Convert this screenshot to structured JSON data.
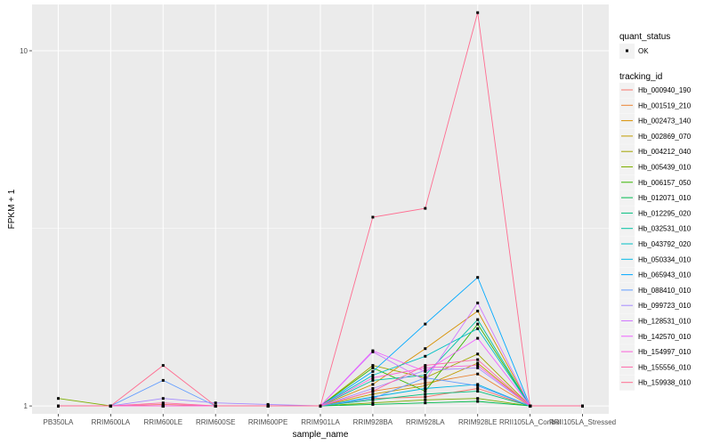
{
  "chart_data": {
    "type": "line",
    "xlabel": "sample_name",
    "ylabel": "FPKM + 1",
    "y_scale": "log10",
    "ylim": [
      0.95,
      13.5
    ],
    "y_ticks": [
      1,
      10
    ],
    "y_tick_labels": [
      "1",
      "10"
    ],
    "grid": true,
    "legend_position": "right",
    "categories": [
      "PB350LA",
      "RRIM600LA",
      "RRIM600LE",
      "RRIM600SE",
      "RRIM600PE",
      "RRIM901LA",
      "RRIM928BA",
      "RRIM928LA",
      "RRIM928LE",
      "RRII105LA_Control",
      "RRII105LA_Stressed"
    ],
    "point_legend": {
      "title": "quant_status",
      "entries": [
        "OK"
      ]
    },
    "color_legend_title": "tracking_id",
    "series": [
      {
        "name": "Hb_000940_190",
        "color": "#F8766D",
        "values": [
          1.0,
          1.0,
          1.01,
          1.0,
          1.0,
          1.0,
          1.05,
          1.06,
          1.12,
          1.0,
          1.0
        ]
      },
      {
        "name": "Hb_001519_210",
        "color": "#EA8331",
        "values": [
          1.0,
          1.0,
          1.0,
          1.0,
          1.0,
          1.0,
          1.1,
          1.16,
          1.23,
          1.0,
          1.0
        ]
      },
      {
        "name": "Hb_002473_140",
        "color": "#D89000",
        "values": [
          1.0,
          1.0,
          1.0,
          1.0,
          1.0,
          1.0,
          1.15,
          1.45,
          1.85,
          1.0,
          1.0
        ]
      },
      {
        "name": "Hb_002869_070",
        "color": "#C09B00",
        "values": [
          1.0,
          1.0,
          1.0,
          1.0,
          1.0,
          1.0,
          1.08,
          1.14,
          1.32,
          1.0,
          1.0
        ]
      },
      {
        "name": "Hb_004212_040",
        "color": "#A3A500",
        "values": [
          1.0,
          1.0,
          1.0,
          1.0,
          1.0,
          1.0,
          1.3,
          1.2,
          1.4,
          1.0,
          1.0
        ]
      },
      {
        "name": "Hb_005439_010",
        "color": "#7CAE00",
        "values": [
          1.05,
          1.0,
          1.0,
          1.0,
          1.0,
          1.0,
          1.02,
          1.04,
          1.05,
          1.0,
          1.0
        ]
      },
      {
        "name": "Hb_006157_050",
        "color": "#39B600",
        "values": [
          1.0,
          1.0,
          1.0,
          1.0,
          1.0,
          1.0,
          1.28,
          1.1,
          1.7,
          1.0,
          1.0
        ]
      },
      {
        "name": "Hb_012071_010",
        "color": "#00BB4E",
        "values": [
          1.0,
          1.0,
          1.0,
          1.0,
          1.0,
          1.0,
          1.01,
          1.02,
          1.03,
          1.0,
          1.0
        ]
      },
      {
        "name": "Hb_012295_020",
        "color": "#00BF7D",
        "values": [
          1.0,
          1.0,
          1.0,
          1.0,
          1.0,
          1.0,
          1.04,
          1.08,
          1.1,
          1.0,
          1.0
        ]
      },
      {
        "name": "Hb_032531_010",
        "color": "#00C1A3",
        "values": [
          1.0,
          1.0,
          1.0,
          1.0,
          1.0,
          1.0,
          1.18,
          1.22,
          1.75,
          1.0,
          1.0
        ]
      },
      {
        "name": "Hb_043792_020",
        "color": "#00BFC4",
        "values": [
          1.0,
          1.0,
          1.0,
          1.0,
          1.0,
          1.0,
          1.22,
          1.38,
          1.65,
          1.0,
          1.0
        ]
      },
      {
        "name": "Hb_050334_010",
        "color": "#00B8E5",
        "values": [
          1.0,
          1.0,
          1.0,
          1.0,
          1.0,
          1.0,
          1.06,
          1.12,
          1.15,
          1.0,
          1.0
        ]
      },
      {
        "name": "Hb_065943_010",
        "color": "#00A9FF",
        "values": [
          1.0,
          1.0,
          1.0,
          1.0,
          1.0,
          1.0,
          1.25,
          1.7,
          2.3,
          1.0,
          1.0
        ]
      },
      {
        "name": "Hb_088410_010",
        "color": "#619CFF",
        "values": [
          1.0,
          1.0,
          1.18,
          1.0,
          1.0,
          1.0,
          1.05,
          1.2,
          1.14,
          1.0,
          1.0
        ]
      },
      {
        "name": "Hb_099723_010",
        "color": "#A58AFF",
        "values": [
          1.0,
          1.0,
          1.05,
          1.02,
          1.01,
          1.0,
          1.12,
          1.26,
          1.28,
          1.0,
          1.0
        ]
      },
      {
        "name": "Hb_128531_010",
        "color": "#D078FF",
        "values": [
          1.0,
          1.0,
          1.0,
          1.0,
          1.0,
          1.0,
          1.42,
          1.18,
          1.95,
          1.0,
          1.0
        ]
      },
      {
        "name": "Hb_142570_010",
        "color": "#EE61FF",
        "values": [
          1.0,
          1.0,
          1.0,
          1.0,
          1.0,
          1.0,
          1.43,
          1.25,
          1.55,
          1.0,
          1.0
        ]
      },
      {
        "name": "Hb_154997_010",
        "color": "#FB61D7",
        "values": [
          1.0,
          1.0,
          1.0,
          1.0,
          1.0,
          1.0,
          1.2,
          1.28,
          1.3,
          1.0,
          1.0
        ]
      },
      {
        "name": "Hb_155556_010",
        "color": "#FF66A8",
        "values": [
          1.0,
          1.0,
          1.02,
          1.0,
          1.0,
          1.0,
          1.1,
          1.3,
          1.35,
          1.0,
          1.0
        ]
      },
      {
        "name": "Hb_159938_010",
        "color": "#FF6C90",
        "values": [
          1.0,
          1.0,
          1.3,
          1.0,
          1.0,
          1.0,
          3.4,
          3.6,
          12.8,
          1.0,
          1.0
        ]
      }
    ],
    "colors": {
      "panel_background": "#EBEBEB",
      "grid": "#FFFFFF",
      "point": "#000000"
    }
  }
}
